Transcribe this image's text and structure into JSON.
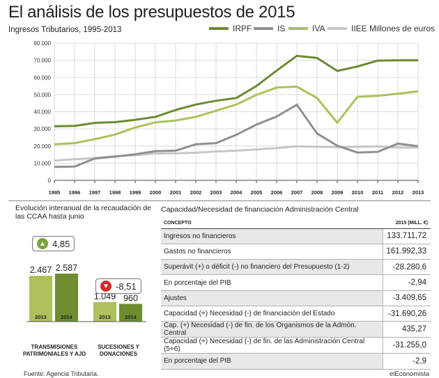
{
  "title": "El análisis de los presupuestos de 2015",
  "subtitle": "Ingresos Tributarios, 1995-2013",
  "units": "Millones de euros",
  "colors": {
    "irpf": "#6b8a32",
    "is": "#8f8f8f",
    "iva": "#a9c25a",
    "iiee": "#c6c6c6",
    "green_dark": "#6f8c30",
    "green_light": "#aebf5c",
    "up": "#7aa23a",
    "down": "#d42b2b"
  },
  "chart_data": [
    {
      "type": "line",
      "x": [
        "1995",
        "1996",
        "1997",
        "1998",
        "1999",
        "2000",
        "2001",
        "2002",
        "2003",
        "2004",
        "2005",
        "2006",
        "2007",
        "2008",
        "2009",
        "2010",
        "2011",
        "2012",
        "2013"
      ],
      "ylim": [
        0,
        80000
      ],
      "yticks": [
        "0",
        "10.000",
        "20.000",
        "30.000",
        "40.000",
        "50.000",
        "60.000",
        "70.000",
        "80.000"
      ],
      "grid": true,
      "legend_position": "top",
      "series": [
        {
          "name": "IRPF",
          "values": [
            31500,
            31700,
            33500,
            33900,
            35300,
            37000,
            41000,
            44200,
            46400,
            48000,
            55000,
            64000,
            72600,
            71400,
            63800,
            66400,
            69800,
            70000,
            70000
          ]
        },
        {
          "name": "IS",
          "values": [
            7800,
            8000,
            12700,
            13800,
            15200,
            17000,
            17300,
            21000,
            21700,
            26500,
            32500,
            37200,
            44100,
            27300,
            20200,
            16200,
            16600,
            21400,
            19900
          ]
        },
        {
          "name": "IVA",
          "values": [
            21000,
            21700,
            24000,
            26700,
            30800,
            33800,
            34900,
            37000,
            40600,
            44200,
            49800,
            54100,
            54600,
            48000,
            33600,
            48700,
            49300,
            50500,
            51900
          ]
        },
        {
          "name": "IIEE",
          "values": [
            11500,
            12300,
            13000,
            14000,
            14700,
            15600,
            15700,
            16100,
            16800,
            17300,
            18000,
            18800,
            19800,
            19600,
            19300,
            19600,
            19800,
            19100,
            19100
          ]
        }
      ]
    },
    {
      "type": "bar",
      "title": "Evolución interanual de la recaudación de las CCAA hasta junio",
      "categories": [
        "TRANSMISIONES PATRIMONIALES Y AJD",
        "SUCESIONES Y DONACIONES"
      ],
      "series": [
        {
          "name": "2013",
          "values": [
            2467,
            1049
          ],
          "labels": [
            "2.467",
            "1.049"
          ]
        },
        {
          "name": "2014",
          "values": [
            2587,
            960
          ],
          "labels": [
            "2.587",
            "960"
          ]
        }
      ],
      "changes": [
        "4,85",
        "-8,51"
      ]
    }
  ],
  "table": {
    "title": "Capacidad/Necesidad de financiación Administración Central",
    "head": [
      "CONCEPTO",
      "2015 (MILL. €)"
    ],
    "rows": [
      {
        "label": "Ingresos no financieros",
        "value": "133.711,72",
        "shaded": true
      },
      {
        "label": "Gastos no financieros",
        "value": "161.992,33",
        "shaded": false
      },
      {
        "label": "Superávit (+) o déficit (-) no financiero del Presupuesto (1-2)",
        "value": "-28.280,6",
        "shaded": true
      },
      {
        "label": "En porcentaje del PIB",
        "value": "-2,94",
        "shaded": false
      },
      {
        "label": "Ajustes",
        "value": "-3.409,65",
        "shaded": true
      },
      {
        "label": "Capacidad (+) Necesidad (-) de financiación del Estado",
        "value": "-31.690,26",
        "shaded": false
      },
      {
        "label": "Cap. (+) Necesidad (-) de fin. de los Organismos de la Admón. Central",
        "value": "435,27",
        "shaded": true
      },
      {
        "label": "Capacidad (+) Necesidad (-) de fin. de las Administración Central (5+6)",
        "value": "-31.255,0",
        "shaded": false
      },
      {
        "label": "En porcentaje del PIB",
        "value": "-2,9",
        "shaded": true
      }
    ]
  },
  "footer": {
    "source": "Fuente: Agencia Tributaria.",
    "brand": "elEconomista"
  }
}
